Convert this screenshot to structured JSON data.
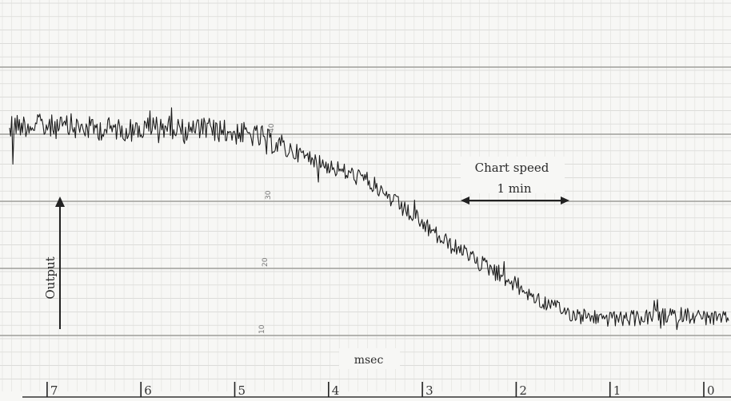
{
  "chart_data": {
    "type": "line",
    "title": "",
    "xlabel": "msec",
    "ylabel": "Output",
    "x_axis": {
      "ticks": [
        "7",
        "6",
        "5",
        "4",
        "3",
        "2",
        "1",
        "0"
      ],
      "direction": "decreasing-left-to-right"
    },
    "y_axis": {
      "grid_labels": [
        "10",
        "20",
        "30",
        "40"
      ]
    },
    "annotations": {
      "chart_speed_label": "Chart speed",
      "chart_speed_value": "1 min"
    },
    "series": [
      {
        "name": "",
        "x": [
          7.4,
          7.2,
          7.0,
          6.8,
          6.6,
          6.4,
          6.2,
          6.0,
          5.8,
          5.6,
          5.4,
          5.2,
          5.0,
          4.8,
          4.6,
          4.4,
          4.2,
          4.0,
          3.8,
          3.6,
          3.4,
          3.2,
          3.0,
          2.8,
          2.6,
          2.4,
          2.2,
          2.0,
          1.8,
          1.6,
          1.4,
          1.2,
          1.0,
          0.8,
          0.6,
          0.4,
          0.2,
          0.0,
          -0.2
        ],
        "y": [
          41.5,
          41.3,
          41.2,
          41.0,
          40.9,
          40.8,
          40.8,
          40.6,
          41.3,
          40.9,
          40.7,
          40.6,
          40.2,
          39.8,
          38.8,
          37.6,
          36.4,
          35.3,
          34.2,
          33.2,
          31.0,
          28.8,
          26.6,
          24.4,
          22.6,
          20.9,
          19.5,
          17.5,
          15.6,
          14.2,
          13.2,
          12.8,
          12.4,
          12.5,
          12.7,
          12.9,
          13.1,
          12.7,
          12.4
        ]
      }
    ],
    "grid": true
  }
}
